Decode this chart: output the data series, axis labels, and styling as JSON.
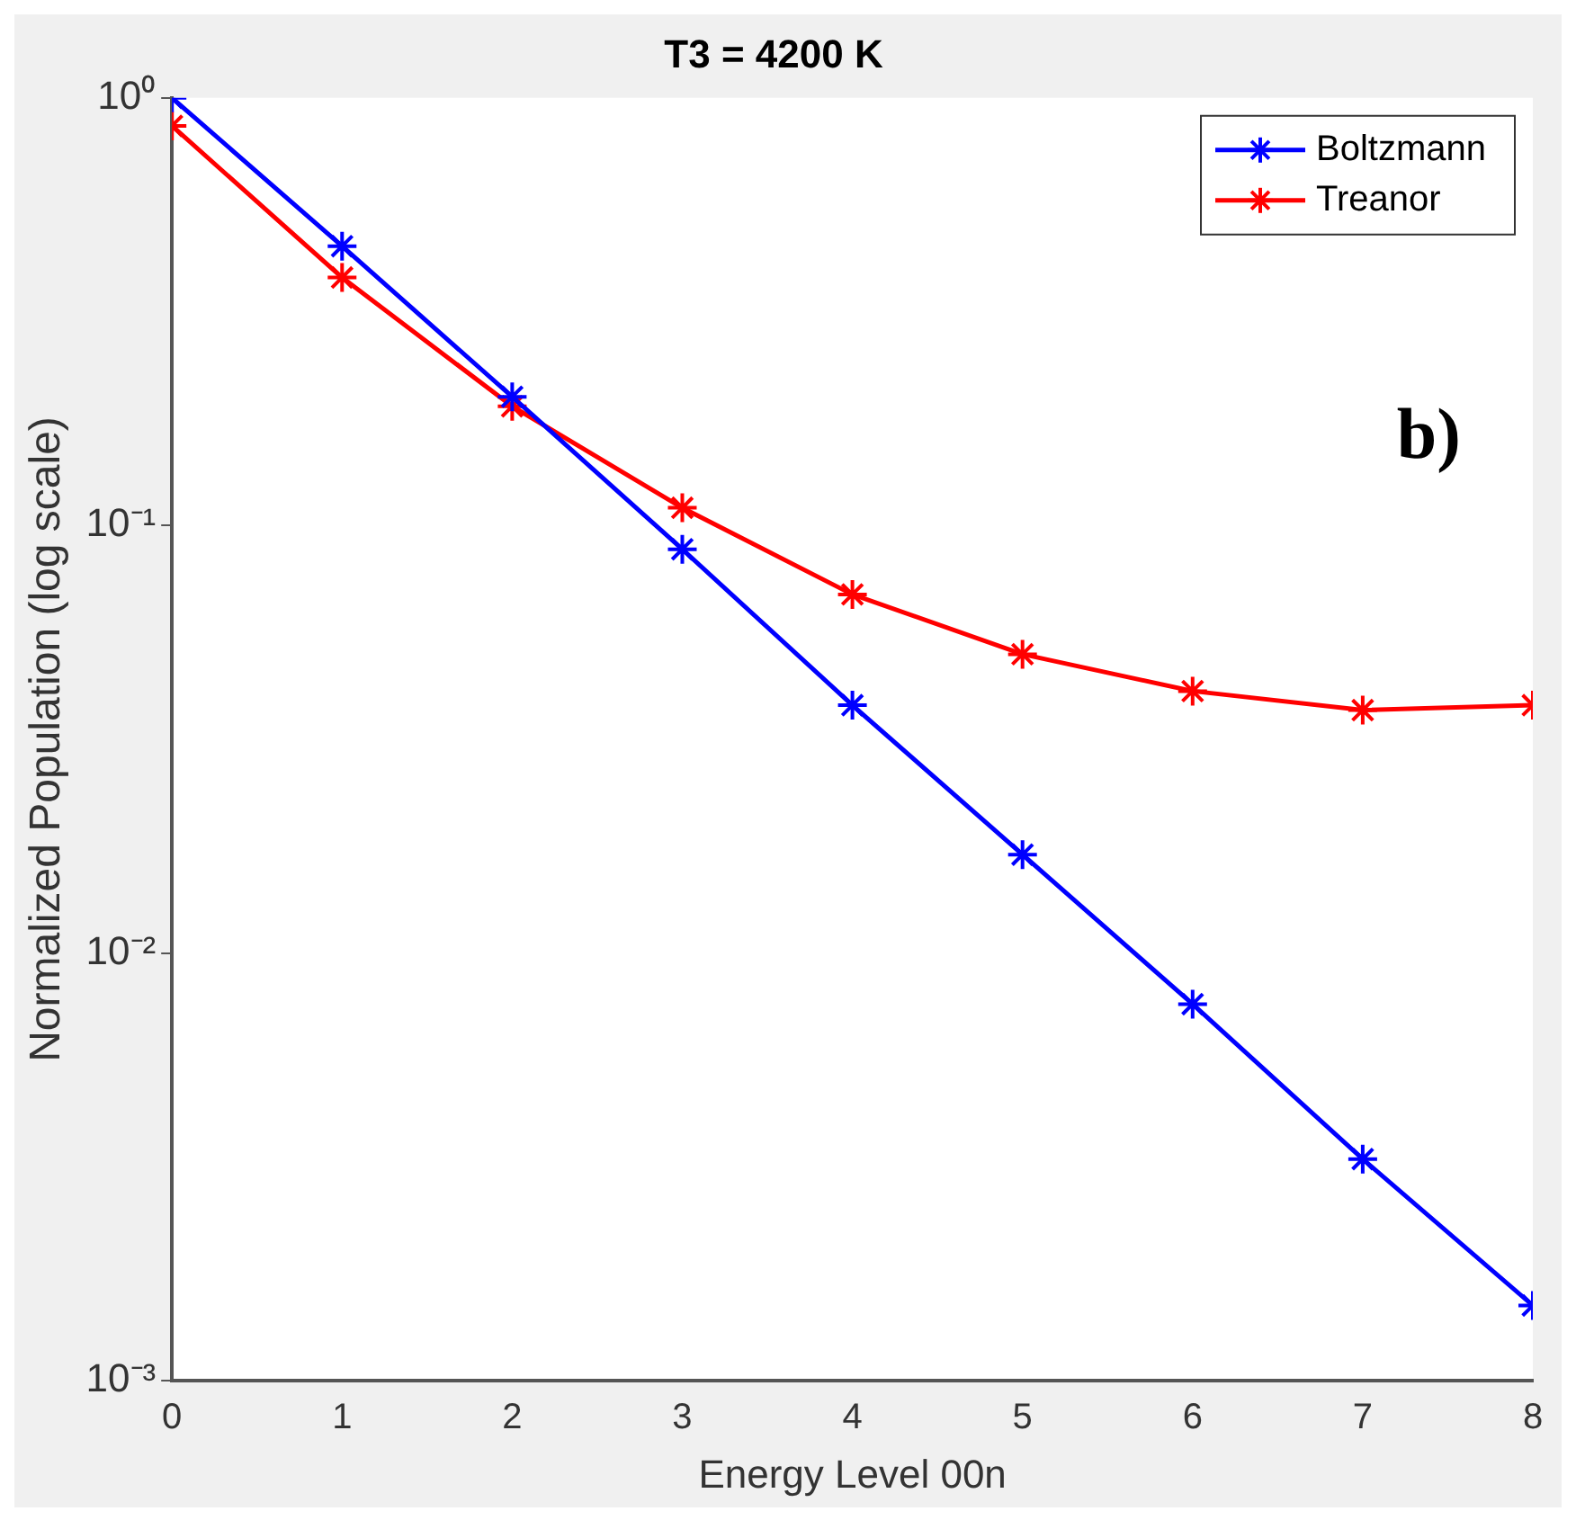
{
  "chart_data": {
    "type": "line",
    "title": "T3 = 4200 K",
    "xlabel": "Energy Level 00n",
    "ylabel": "Normalized Population (log scale)",
    "x": [
      0,
      1,
      2,
      3,
      4,
      5,
      6,
      7,
      8
    ],
    "series": [
      {
        "name": "Boltzmann",
        "color": "#0000ff",
        "values": [
          1.0,
          0.45,
          0.2,
          0.088,
          0.038,
          0.017,
          0.0076,
          0.0033,
          0.0015
        ]
      },
      {
        "name": "Treanor",
        "color": "#ff0000",
        "values": [
          0.86,
          0.38,
          0.19,
          0.11,
          0.069,
          0.05,
          0.041,
          0.037,
          0.038
        ]
      }
    ],
    "log": "y",
    "xlim": [
      0,
      8
    ],
    "xticks": [
      0,
      1,
      2,
      3,
      4,
      5,
      6,
      7,
      8
    ],
    "ylim": [
      0.001,
      1
    ],
    "yticks": [
      {
        "value": 0.001,
        "label": "10⁻³"
      },
      {
        "value": 0.01,
        "label": "10⁻²"
      },
      {
        "value": 0.1,
        "label": "10⁻¹"
      },
      {
        "value": 1,
        "label": "10⁰"
      }
    ],
    "grid": false,
    "legend": "top right",
    "marker": "cross",
    "line_style": "solid",
    "annotations": [
      "b)"
    ]
  }
}
